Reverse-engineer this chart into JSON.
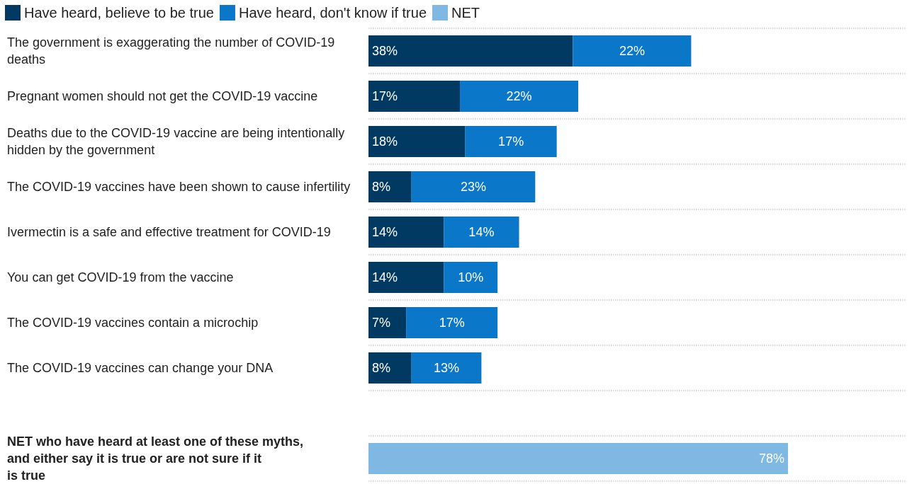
{
  "chart_data": {
    "type": "bar",
    "orientation": "horizontal",
    "stacked": true,
    "categories": [
      "The government is exaggerating the number of COVID-19 deaths",
      "Pregnant women should not get the COVID-19 vaccine",
      "Deaths due to the COVID-19 vaccine are being intentionally hidden by the government",
      "The COVID-19 vaccines have been shown to cause infertility",
      "Ivermectin is a safe and effective treatment for COVID-19",
      "You can get COVID-19 from the vaccine",
      "The COVID-19 vaccines contain a microchip",
      "The COVID-19 vaccines can change your DNA",
      null,
      "NET who have heard at least one of these myths, and either say it is true or are not sure if it is true"
    ],
    "series": [
      {
        "name": "Have heard, believe to be true",
        "color": "#003a63",
        "values": [
          38,
          17,
          18,
          8,
          14,
          14,
          7,
          8,
          null,
          null
        ],
        "value_labels": [
          "38%",
          "17%",
          "18%",
          "8%",
          "14%",
          "14%",
          "7%",
          "8%",
          null,
          null
        ]
      },
      {
        "name": "Have heard, don't know if true",
        "color": "#0a77c8",
        "values": [
          22,
          22,
          17,
          23,
          14,
          10,
          17,
          13,
          null,
          null
        ],
        "value_labels": [
          "22%",
          "22%",
          "17%",
          "23%",
          "14%",
          "10%",
          "17%",
          "13%",
          null,
          null
        ]
      },
      {
        "name": "NET",
        "color": "#7fb8e2",
        "values": [
          null,
          null,
          null,
          null,
          null,
          null,
          null,
          null,
          null,
          78
        ],
        "value_labels": [
          null,
          null,
          null,
          null,
          null,
          null,
          null,
          null,
          null,
          "78%"
        ]
      }
    ],
    "xlim": [
      0,
      100
    ],
    "tick_labels": "y",
    "grid": "y",
    "legend": "top left"
  }
}
